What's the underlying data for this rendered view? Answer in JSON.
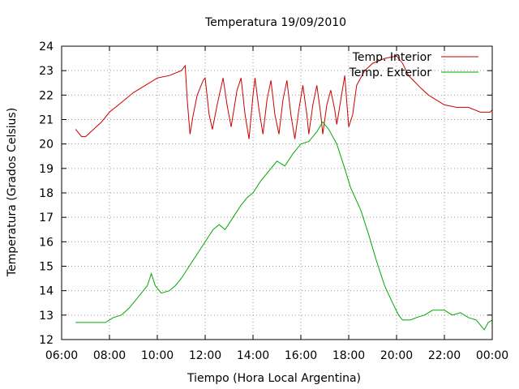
{
  "chart_data": {
    "type": "line",
    "title": "Temperatura 19/09/2010",
    "xlabel": "Tiempo (Hora Local Argentina)",
    "ylabel": "Temperatura (Grados Celsius)",
    "xlim": [
      "06:00",
      "00:00"
    ],
    "ylim": [
      12,
      24
    ],
    "grid": true,
    "legend_position": "top-right",
    "x_ticks": [
      "06:00",
      "08:00",
      "10:00",
      "12:00",
      "14:00",
      "16:00",
      "18:00",
      "20:00",
      "22:00",
      "00:00"
    ],
    "y_ticks": [
      12,
      13,
      14,
      15,
      16,
      17,
      18,
      19,
      20,
      21,
      22,
      23,
      24
    ],
    "series": [
      {
        "name": "Temp. Interior",
        "color": "#cc0000",
        "points": [
          [
            "06:35",
            20.6
          ],
          [
            "06:50",
            20.3
          ],
          [
            "07:00",
            20.3
          ],
          [
            "07:20",
            20.6
          ],
          [
            "07:40",
            20.9
          ],
          [
            "08:00",
            21.3
          ],
          [
            "08:30",
            21.7
          ],
          [
            "09:00",
            22.1
          ],
          [
            "09:30",
            22.4
          ],
          [
            "10:00",
            22.7
          ],
          [
            "10:30",
            22.8
          ],
          [
            "11:00",
            23.0
          ],
          [
            "11:10",
            23.2
          ],
          [
            "11:15",
            21.8
          ],
          [
            "11:22",
            20.4
          ],
          [
            "11:30",
            21.2
          ],
          [
            "11:40",
            22.0
          ],
          [
            "11:55",
            22.6
          ],
          [
            "12:00",
            22.7
          ],
          [
            "12:10",
            21.2
          ],
          [
            "12:18",
            20.6
          ],
          [
            "12:30",
            21.6
          ],
          [
            "12:45",
            22.7
          ],
          [
            "12:55",
            21.6
          ],
          [
            "13:05",
            20.7
          ],
          [
            "13:20",
            22.2
          ],
          [
            "13:30",
            22.7
          ],
          [
            "13:40",
            21.2
          ],
          [
            "13:50",
            20.2
          ],
          [
            "14:00",
            22.0
          ],
          [
            "14:05",
            22.7
          ],
          [
            "14:15",
            21.4
          ],
          [
            "14:25",
            20.4
          ],
          [
            "14:35",
            21.8
          ],
          [
            "14:45",
            22.6
          ],
          [
            "14:55",
            21.2
          ],
          [
            "15:05",
            20.4
          ],
          [
            "15:15",
            21.8
          ],
          [
            "15:25",
            22.6
          ],
          [
            "15:35",
            21.2
          ],
          [
            "15:45",
            20.2
          ],
          [
            "15:55",
            21.4
          ],
          [
            "16:05",
            22.4
          ],
          [
            "16:15",
            21.2
          ],
          [
            "16:20",
            20.4
          ],
          [
            "16:30",
            21.6
          ],
          [
            "16:40",
            22.4
          ],
          [
            "16:50",
            21.2
          ],
          [
            "16:55",
            20.4
          ],
          [
            "17:05",
            21.6
          ],
          [
            "17:15",
            22.2
          ],
          [
            "17:25",
            21.4
          ],
          [
            "17:30",
            20.8
          ],
          [
            "17:40",
            21.8
          ],
          [
            "17:50",
            22.8
          ],
          [
            "18:00",
            20.7
          ],
          [
            "18:10",
            21.2
          ],
          [
            "18:20",
            22.4
          ],
          [
            "18:40",
            23.0
          ],
          [
            "19:00",
            23.3
          ],
          [
            "19:30",
            23.5
          ],
          [
            "20:00",
            23.6
          ],
          [
            "20:15",
            23.3
          ],
          [
            "20:30",
            22.8
          ],
          [
            "21:00",
            22.3
          ],
          [
            "21:20",
            22.0
          ],
          [
            "21:40",
            21.8
          ],
          [
            "22:00",
            21.6
          ],
          [
            "22:30",
            21.5
          ],
          [
            "23:00",
            21.5
          ],
          [
            "23:30",
            21.3
          ],
          [
            "23:55",
            21.3
          ],
          [
            "24:00",
            21.4
          ]
        ]
      },
      {
        "name": "Temp. Exterior",
        "color": "#00aa00",
        "points": [
          [
            "06:35",
            12.7
          ],
          [
            "07:00",
            12.7
          ],
          [
            "07:30",
            12.7
          ],
          [
            "07:50",
            12.7
          ],
          [
            "08:10",
            12.9
          ],
          [
            "08:30",
            13.0
          ],
          [
            "08:50",
            13.3
          ],
          [
            "09:05",
            13.6
          ],
          [
            "09:20",
            13.9
          ],
          [
            "09:35",
            14.2
          ],
          [
            "09:45",
            14.7
          ],
          [
            "09:55",
            14.2
          ],
          [
            "10:10",
            13.9
          ],
          [
            "10:30",
            14.0
          ],
          [
            "10:45",
            14.2
          ],
          [
            "11:00",
            14.5
          ],
          [
            "11:20",
            15.0
          ],
          [
            "11:40",
            15.5
          ],
          [
            "12:00",
            16.0
          ],
          [
            "12:20",
            16.5
          ],
          [
            "12:35",
            16.7
          ],
          [
            "12:50",
            16.5
          ],
          [
            "13:10",
            17.0
          ],
          [
            "13:30",
            17.5
          ],
          [
            "13:45",
            17.8
          ],
          [
            "14:00",
            18.0
          ],
          [
            "14:20",
            18.5
          ],
          [
            "14:40",
            18.9
          ],
          [
            "15:00",
            19.3
          ],
          [
            "15:20",
            19.1
          ],
          [
            "15:40",
            19.6
          ],
          [
            "16:00",
            20.0
          ],
          [
            "16:20",
            20.1
          ],
          [
            "16:40",
            20.5
          ],
          [
            "16:55",
            20.9
          ],
          [
            "17:10",
            20.6
          ],
          [
            "17:30",
            20.0
          ],
          [
            "17:50",
            19.0
          ],
          [
            "18:05",
            18.2
          ],
          [
            "18:30",
            17.3
          ],
          [
            "18:50",
            16.3
          ],
          [
            "19:10",
            15.2
          ],
          [
            "19:30",
            14.2
          ],
          [
            "19:50",
            13.5
          ],
          [
            "20:05",
            13.0
          ],
          [
            "20:15",
            12.8
          ],
          [
            "20:35",
            12.8
          ],
          [
            "20:50",
            12.9
          ],
          [
            "21:10",
            13.0
          ],
          [
            "21:30",
            13.2
          ],
          [
            "22:00",
            13.2
          ],
          [
            "22:20",
            13.0
          ],
          [
            "22:40",
            13.1
          ],
          [
            "23:00",
            12.9
          ],
          [
            "23:20",
            12.8
          ],
          [
            "23:40",
            12.4
          ],
          [
            "23:50",
            12.7
          ],
          [
            "24:00",
            12.8
          ]
        ]
      }
    ]
  }
}
